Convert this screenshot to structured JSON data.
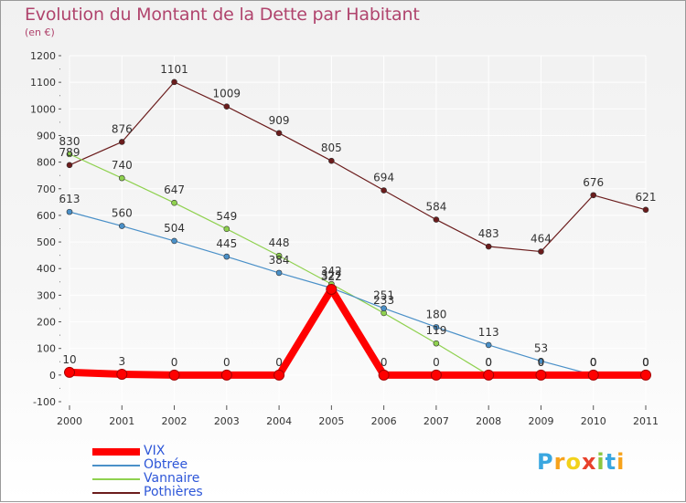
{
  "title": "Evolution du Montant de la Dette par Habitant",
  "subtitle": "(en €)",
  "logo": {
    "letters": [
      "P",
      "r",
      "o",
      "x",
      "i",
      "t",
      "i"
    ],
    "colors": [
      "#3aa7e0",
      "#f7a21b",
      "#f2d21b",
      "#e8412c",
      "#8cc63f",
      "#3aa7e0",
      "#f7a21b"
    ]
  },
  "chart_data": {
    "type": "line",
    "x": [
      "2000",
      "2001",
      "2002",
      "2003",
      "2004",
      "2005",
      "2006",
      "2007",
      "2008",
      "2009",
      "2010",
      "2011"
    ],
    "ylim": [
      -100,
      1200
    ],
    "yticks": [
      "-100",
      "0",
      "100",
      "200",
      "300",
      "400",
      "500",
      "600",
      "700",
      "800",
      "900",
      "1000",
      "1100",
      "1200"
    ],
    "grid": true,
    "legend_position": "bottom-left",
    "series": [
      {
        "name": "VIX",
        "color": "#ff0000",
        "values": [
          10,
          3,
          0,
          0,
          0,
          322,
          0,
          0,
          0,
          0,
          0,
          0
        ],
        "labels": [
          "10",
          "3",
          "0",
          "0",
          "0",
          "322",
          "0",
          "0",
          "0",
          "0",
          "0",
          "0"
        ]
      },
      {
        "name": "Obtrée",
        "color": "#4a90c8",
        "values": [
          613,
          560,
          504,
          445,
          384,
          327,
          251,
          180,
          113,
          53,
          0,
          0
        ],
        "labels": [
          "613",
          "560",
          "504",
          "445",
          "384",
          "327",
          "251",
          "180",
          "113",
          "53",
          "0",
          "0"
        ]
      },
      {
        "name": "Vannaire",
        "color": "#8fd14f",
        "values": [
          830,
          740,
          647,
          549,
          448,
          342,
          233,
          119,
          0,
          0,
          0,
          0
        ],
        "labels": [
          "830",
          "740",
          "647",
          "549",
          "448",
          "342",
          "233",
          "119",
          "0",
          "0",
          "0",
          "0"
        ]
      },
      {
        "name": "Pothières",
        "color": "#6b1c1c",
        "values": [
          789,
          876,
          1101,
          1009,
          909,
          805,
          694,
          584,
          483,
          464,
          676,
          621
        ],
        "labels": [
          "789",
          "876",
          "1101",
          "1009",
          "909",
          "805",
          "694",
          "584",
          "483",
          "464",
          "676",
          "621"
        ]
      }
    ]
  }
}
